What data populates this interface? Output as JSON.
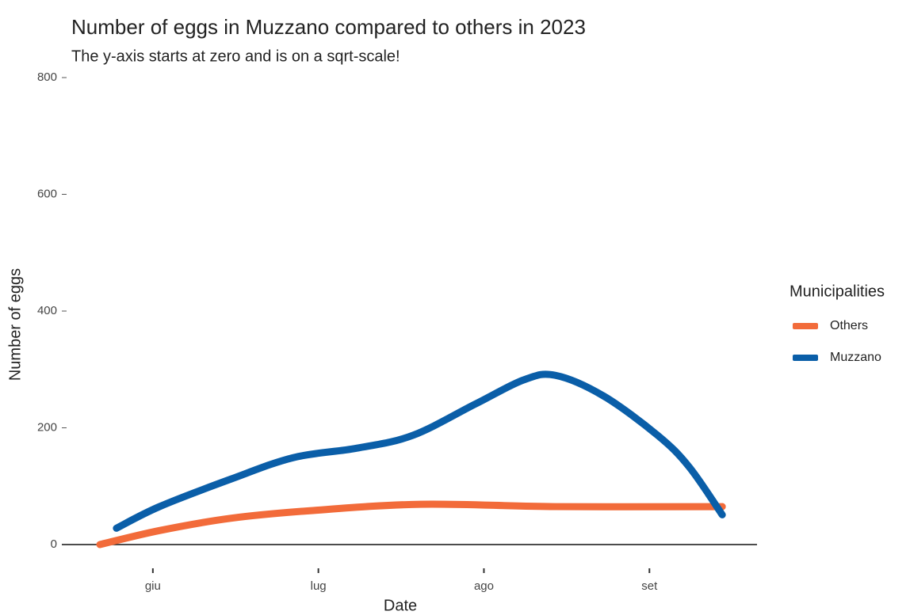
{
  "chart_data": {
    "type": "line",
    "title": "Number of eggs in Muzzano compared to others in 2023",
    "subtitle": "The y-axis starts at zero and is on a sqrt-scale!",
    "x_label": "Date",
    "y_label": "Number of eggs",
    "legend_title": "Municipalities",
    "legend": "right",
    "xlim": [
      5.45,
      9.65
    ],
    "xticks": [
      {
        "value": 6,
        "label": "giu"
      },
      {
        "value": 7,
        "label": "lug"
      },
      {
        "value": 8,
        "label": "ago"
      },
      {
        "value": 9,
        "label": "set"
      }
    ],
    "ylim": [
      0,
      800
    ],
    "yticks": [
      0,
      200,
      400,
      600,
      800
    ],
    "series": [
      {
        "name": "Others",
        "color": "#f26b3a",
        "x": [
          5.68,
          6.04,
          6.47,
          6.95,
          7.62,
          8.43,
          9.44
        ],
        "values": [
          0,
          24,
          45,
          58,
          69,
          65,
          65
        ]
      },
      {
        "name": "Muzzano",
        "color": "#0a5ea8",
        "x": [
          5.78,
          6.04,
          6.47,
          6.85,
          7.23,
          7.57,
          7.95,
          8.24,
          8.43,
          8.72,
          9.05,
          9.24,
          9.44
        ],
        "values": [
          28,
          65,
          112,
          149,
          165,
          187,
          241,
          282,
          290,
          255,
          187,
          133,
          51
        ]
      }
    ]
  }
}
